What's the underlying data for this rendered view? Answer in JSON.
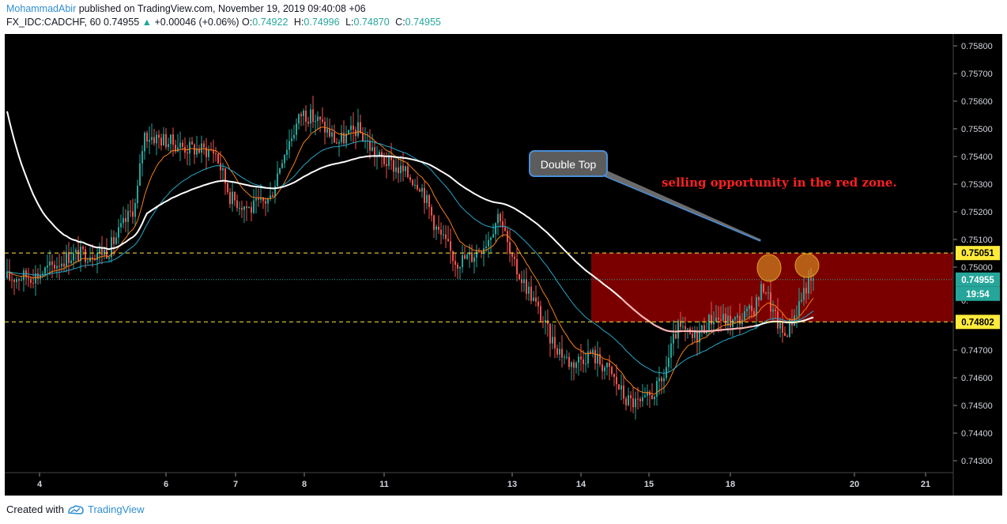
{
  "header": {
    "author": "MohammadAbir",
    "published_text": "published on TradingView.com, November 19, 2019 09:40:08 +06",
    "symbol": "FX_IDC:CADCHF, 60",
    "last": "0.74955",
    "change": "+0.00046 (+0.06%)",
    "o_label": "O:",
    "o": "0.74922",
    "h_label": "H:",
    "h": "0.74996",
    "l_label": "L:",
    "l": "0.74870",
    "c_label": "C:",
    "c": "0.74955"
  },
  "annotations": {
    "callout": "Double Top",
    "note": "selling opportunity in the red zone."
  },
  "price_tags": {
    "upper": "0.75051",
    "last": "0.74955",
    "countdown": "19:54",
    "lower": "0.74802"
  },
  "footer": {
    "created_with": "Created with",
    "brand": "TradingView"
  },
  "colors": {
    "up": "#26a69a",
    "down": "#ef5350",
    "zone": "#7a0000",
    "zone_line": "#ffeb3b",
    "ma_slow": "#ffffff",
    "ma_mid": "#26a6c6",
    "ma_fast": "#f57f17"
  },
  "chart_data": {
    "type": "candlestick",
    "y_ticks": [
      0.758,
      0.757,
      0.756,
      0.755,
      0.754,
      0.753,
      0.752,
      0.751,
      0.75,
      0.747,
      0.746,
      0.745,
      0.744,
      0.743
    ],
    "y_tick_labels": [
      "0.75800",
      "0.75700",
      "0.75600",
      "0.75500",
      "0.75400",
      "0.75300",
      "0.75200",
      "0.75100",
      "0.75000",
      "0.74700",
      "0.74600",
      "0.74500",
      "0.74400",
      "0.74300"
    ],
    "y_hidden_label": "0.",
    "ylim": [
      0.7425,
      0.7586
    ],
    "x_tick_labels": [
      "4",
      "6",
      "7",
      "8",
      "11",
      "13",
      "14",
      "15",
      "18",
      "20",
      "21"
    ],
    "zone": {
      "top": 0.75051,
      "bottom": 0.74802
    },
    "last_price": 0.74955,
    "highlighted_peaks": 2
  }
}
